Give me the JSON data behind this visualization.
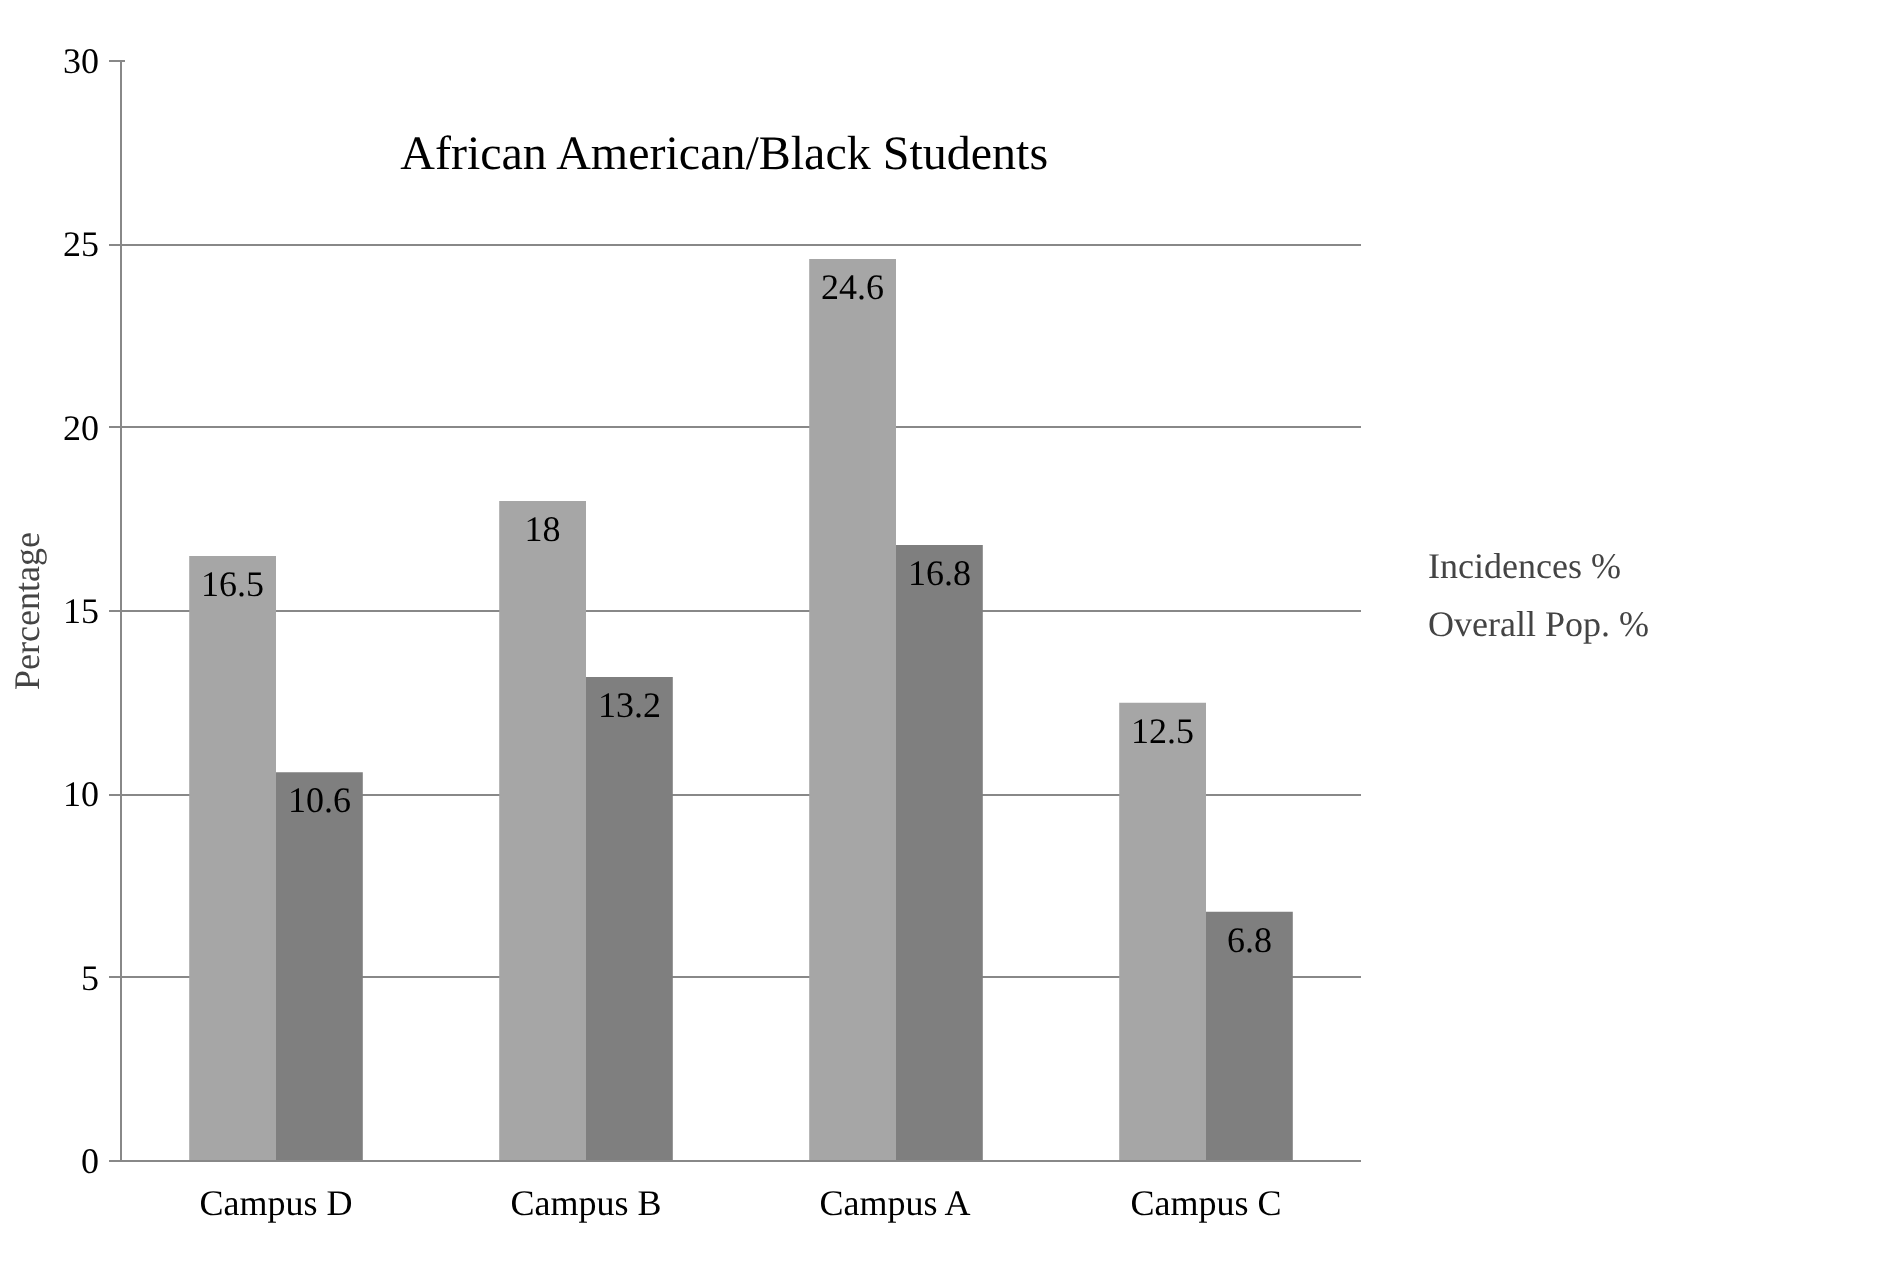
{
  "chart_data": {
    "type": "bar",
    "title": "African American/Black Students",
    "ylabel": "Percentage",
    "categories": [
      "Campus D",
      "Campus B",
      "Campus A",
      "Campus C"
    ],
    "series": [
      {
        "name": "Incidences %",
        "color": "#a6a6a6",
        "values": [
          16.5,
          18,
          24.6,
          12.5
        ]
      },
      {
        "name": "Overall Pop. %",
        "color": "#7f7f7f",
        "values": [
          10.6,
          13.2,
          16.8,
          6.8
        ]
      }
    ],
    "ylim": [
      0,
      30
    ],
    "yticks": [
      0,
      5,
      10,
      15,
      20,
      25,
      30
    ],
    "grid": "y",
    "legend": "right",
    "data_labels": true
  }
}
